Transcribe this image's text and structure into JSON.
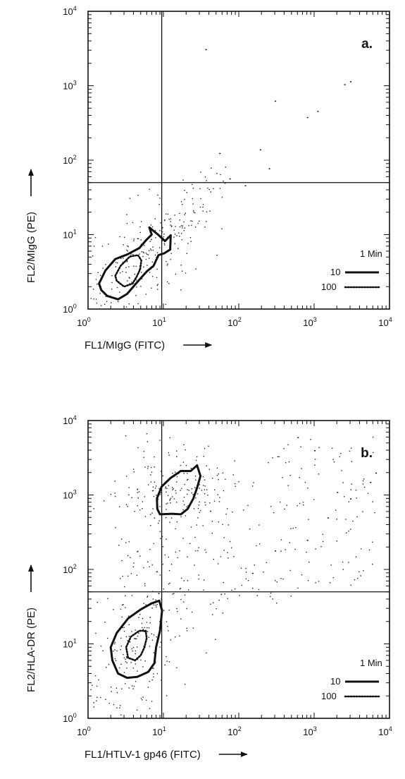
{
  "chart_data": [
    {
      "type": "scatter",
      "panel_label": "a.",
      "xlabel": "FL1/MIgG (FITC)",
      "ylabel": "FL2/MIgG (PE)",
      "x_scale": "log",
      "y_scale": "log",
      "xlim": [
        1,
        10000
      ],
      "ylim": [
        1,
        10000
      ],
      "x_ticks": [
        {
          "base": "10",
          "exp": "0"
        },
        {
          "base": "10",
          "exp": "1"
        },
        {
          "base": "10",
          "exp": "2"
        },
        {
          "base": "10",
          "exp": "3"
        },
        {
          "base": "10",
          "exp": "4"
        }
      ],
      "y_ticks": [
        {
          "base": "10",
          "exp": "0"
        },
        {
          "base": "10",
          "exp": "1"
        },
        {
          "base": "10",
          "exp": "2"
        },
        {
          "base": "10",
          "exp": "3"
        },
        {
          "base": "10",
          "exp": "4"
        }
      ],
      "quadrant_gates": {
        "x": 9.5,
        "y": 50
      },
      "legend": {
        "title": "1 Min",
        "entries": [
          {
            "label": "10",
            "style": "solid"
          },
          {
            "label": "100",
            "style": "dotted"
          }
        ],
        "position": "bottom-right"
      },
      "contours": [
        {
          "level": "10",
          "style": "solid",
          "points": [
            [
              1.4,
              2.2
            ],
            [
              1.7,
              3.3
            ],
            [
              2.3,
              4.7
            ],
            [
              3.3,
              5.4
            ],
            [
              4.8,
              6.6
            ],
            [
              6,
              8.6
            ],
            [
              7,
              10
            ],
            [
              6.5,
              12.5
            ],
            [
              8.5,
              10
            ],
            [
              10.5,
              8.2
            ],
            [
              12.5,
              9.8
            ],
            [
              12.3,
              6.3
            ],
            [
              10.2,
              5.6
            ],
            [
              8.6,
              5.3
            ],
            [
              7.4,
              3.8
            ],
            [
              6,
              3.2
            ],
            [
              4.5,
              2.3
            ],
            [
              3.3,
              1.6
            ],
            [
              2.5,
              1.35
            ],
            [
              1.8,
              1.5
            ],
            [
              1.5,
              1.8
            ]
          ]
        },
        {
          "level": "100",
          "style": "dotted",
          "points": [
            [
              2.3,
              2.8
            ],
            [
              2.7,
              3.8
            ],
            [
              3.6,
              5.1
            ],
            [
              4.6,
              5.3
            ],
            [
              5.1,
              4.5
            ],
            [
              4.9,
              3.4
            ],
            [
              4.4,
              2.7
            ],
            [
              3.9,
              2.2
            ],
            [
              3,
              2
            ],
            [
              2.4,
              2.4
            ]
          ]
        }
      ],
      "points": [
        [
          36,
          3100
        ],
        [
          2500,
          1050
        ],
        [
          3000,
          1150
        ],
        [
          300,
          630
        ],
        [
          1100,
          460
        ],
        [
          800,
          380
        ],
        [
          190,
          140
        ],
        [
          55,
          125
        ],
        [
          250,
          78
        ],
        [
          75,
          57
        ],
        [
          120,
          46
        ]
      ],
      "diffuse_cloud": {
        "center": [
          4,
          4
        ],
        "spread": [
          0.45,
          0.4
        ],
        "count": 200,
        "tail_to": [
          55,
          50
        ],
        "tail_count": 90
      }
    },
    {
      "type": "scatter",
      "panel_label": "b.",
      "xlabel": "FL1/HTLV-1 gp46 (FITC)",
      "ylabel": "FL2/HLA-DR (PE)",
      "x_scale": "log",
      "y_scale": "log",
      "xlim": [
        1,
        10000
      ],
      "ylim": [
        1,
        10000
      ],
      "x_ticks": [
        {
          "base": "10",
          "exp": "0"
        },
        {
          "base": "10",
          "exp": "1"
        },
        {
          "base": "10",
          "exp": "2"
        },
        {
          "base": "10",
          "exp": "3"
        },
        {
          "base": "10",
          "exp": "4"
        }
      ],
      "y_ticks": [
        {
          "base": "10",
          "exp": "0"
        },
        {
          "base": "10",
          "exp": "1"
        },
        {
          "base": "10",
          "exp": "2"
        },
        {
          "base": "10",
          "exp": "3"
        },
        {
          "base": "10",
          "exp": "4"
        }
      ],
      "quadrant_gates": {
        "x": 9.5,
        "y": 50
      },
      "legend": {
        "title": "1 Min",
        "entries": [
          {
            "label": "10",
            "style": "solid"
          },
          {
            "label": "100",
            "style": "dotted"
          }
        ],
        "position": "bottom-right"
      },
      "contours": [
        {
          "level": "10",
          "style": "solid",
          "points": [
            [
              9,
              550
            ],
            [
              8.3,
              650
            ],
            [
              8.2,
              900
            ],
            [
              9.5,
              1300
            ],
            [
              12.5,
              1700
            ],
            [
              17,
              2100
            ],
            [
              23,
              2100
            ],
            [
              28,
              2500
            ],
            [
              31,
              1800
            ],
            [
              28,
              1250
            ],
            [
              25,
              900
            ],
            [
              21,
              650
            ],
            [
              17,
              550
            ],
            [
              13,
              560
            ]
          ]
        },
        {
          "level": "10",
          "style": "solid",
          "points": [
            [
              2.5,
              4
            ],
            [
              2.1,
              6
            ],
            [
              2,
              9
            ],
            [
              2.4,
              14
            ],
            [
              3.4,
              22
            ],
            [
              5,
              29
            ],
            [
              7,
              35
            ],
            [
              8.8,
              38
            ],
            [
              9.6,
              28
            ],
            [
              9,
              15
            ],
            [
              8,
              9
            ],
            [
              7.6,
              5.5
            ],
            [
              6.3,
              4.2
            ],
            [
              4.5,
              3.6
            ],
            [
              3.3,
              3.5
            ]
          ]
        },
        {
          "level": "100",
          "style": "dotted",
          "points": [
            [
              3.4,
              6.5
            ],
            [
              3.2,
              9
            ],
            [
              3.7,
              12.5
            ],
            [
              4.8,
              15
            ],
            [
              5.8,
              15
            ],
            [
              6,
              12
            ],
            [
              5.6,
              9
            ],
            [
              5,
              7
            ],
            [
              4.2,
              6
            ]
          ]
        }
      ],
      "points": [
        [
          600,
          6000
        ],
        [
          1000,
          4000
        ],
        [
          5500,
          1500
        ],
        [
          6500,
          2000
        ],
        [
          3000,
          900
        ],
        [
          1500,
          500
        ],
        [
          800,
          250
        ],
        [
          300,
          180
        ],
        [
          150,
          90
        ],
        [
          2000,
          1100
        ]
      ],
      "diffuse_cloud": {
        "center": [
          4.5,
          10
        ],
        "spread": [
          0.45,
          0.5
        ],
        "count": 220,
        "upper_center": [
          15,
          1100
        ],
        "upper_count": 170,
        "wide_count": 260
      }
    }
  ]
}
